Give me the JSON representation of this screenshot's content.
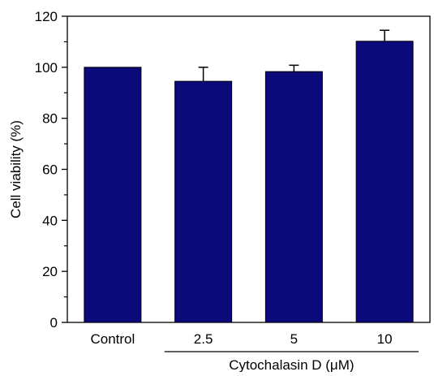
{
  "chart_data": {
    "type": "bar",
    "categories": [
      "Control",
      "2.5",
      "5",
      "10"
    ],
    "values": [
      100,
      94.5,
      98.3,
      110.2
    ],
    "errors": [
      0,
      5.5,
      2.5,
      4.3
    ],
    "ylabel": "Cell viability (%)",
    "xgroup_label": "Cytochalasin D (μM)",
    "ylim": [
      0,
      120
    ],
    "yticks": [
      0,
      20,
      40,
      60,
      80,
      100,
      120
    ],
    "bar_color": "#0a0a7a",
    "grid": false,
    "legend": "none"
  }
}
